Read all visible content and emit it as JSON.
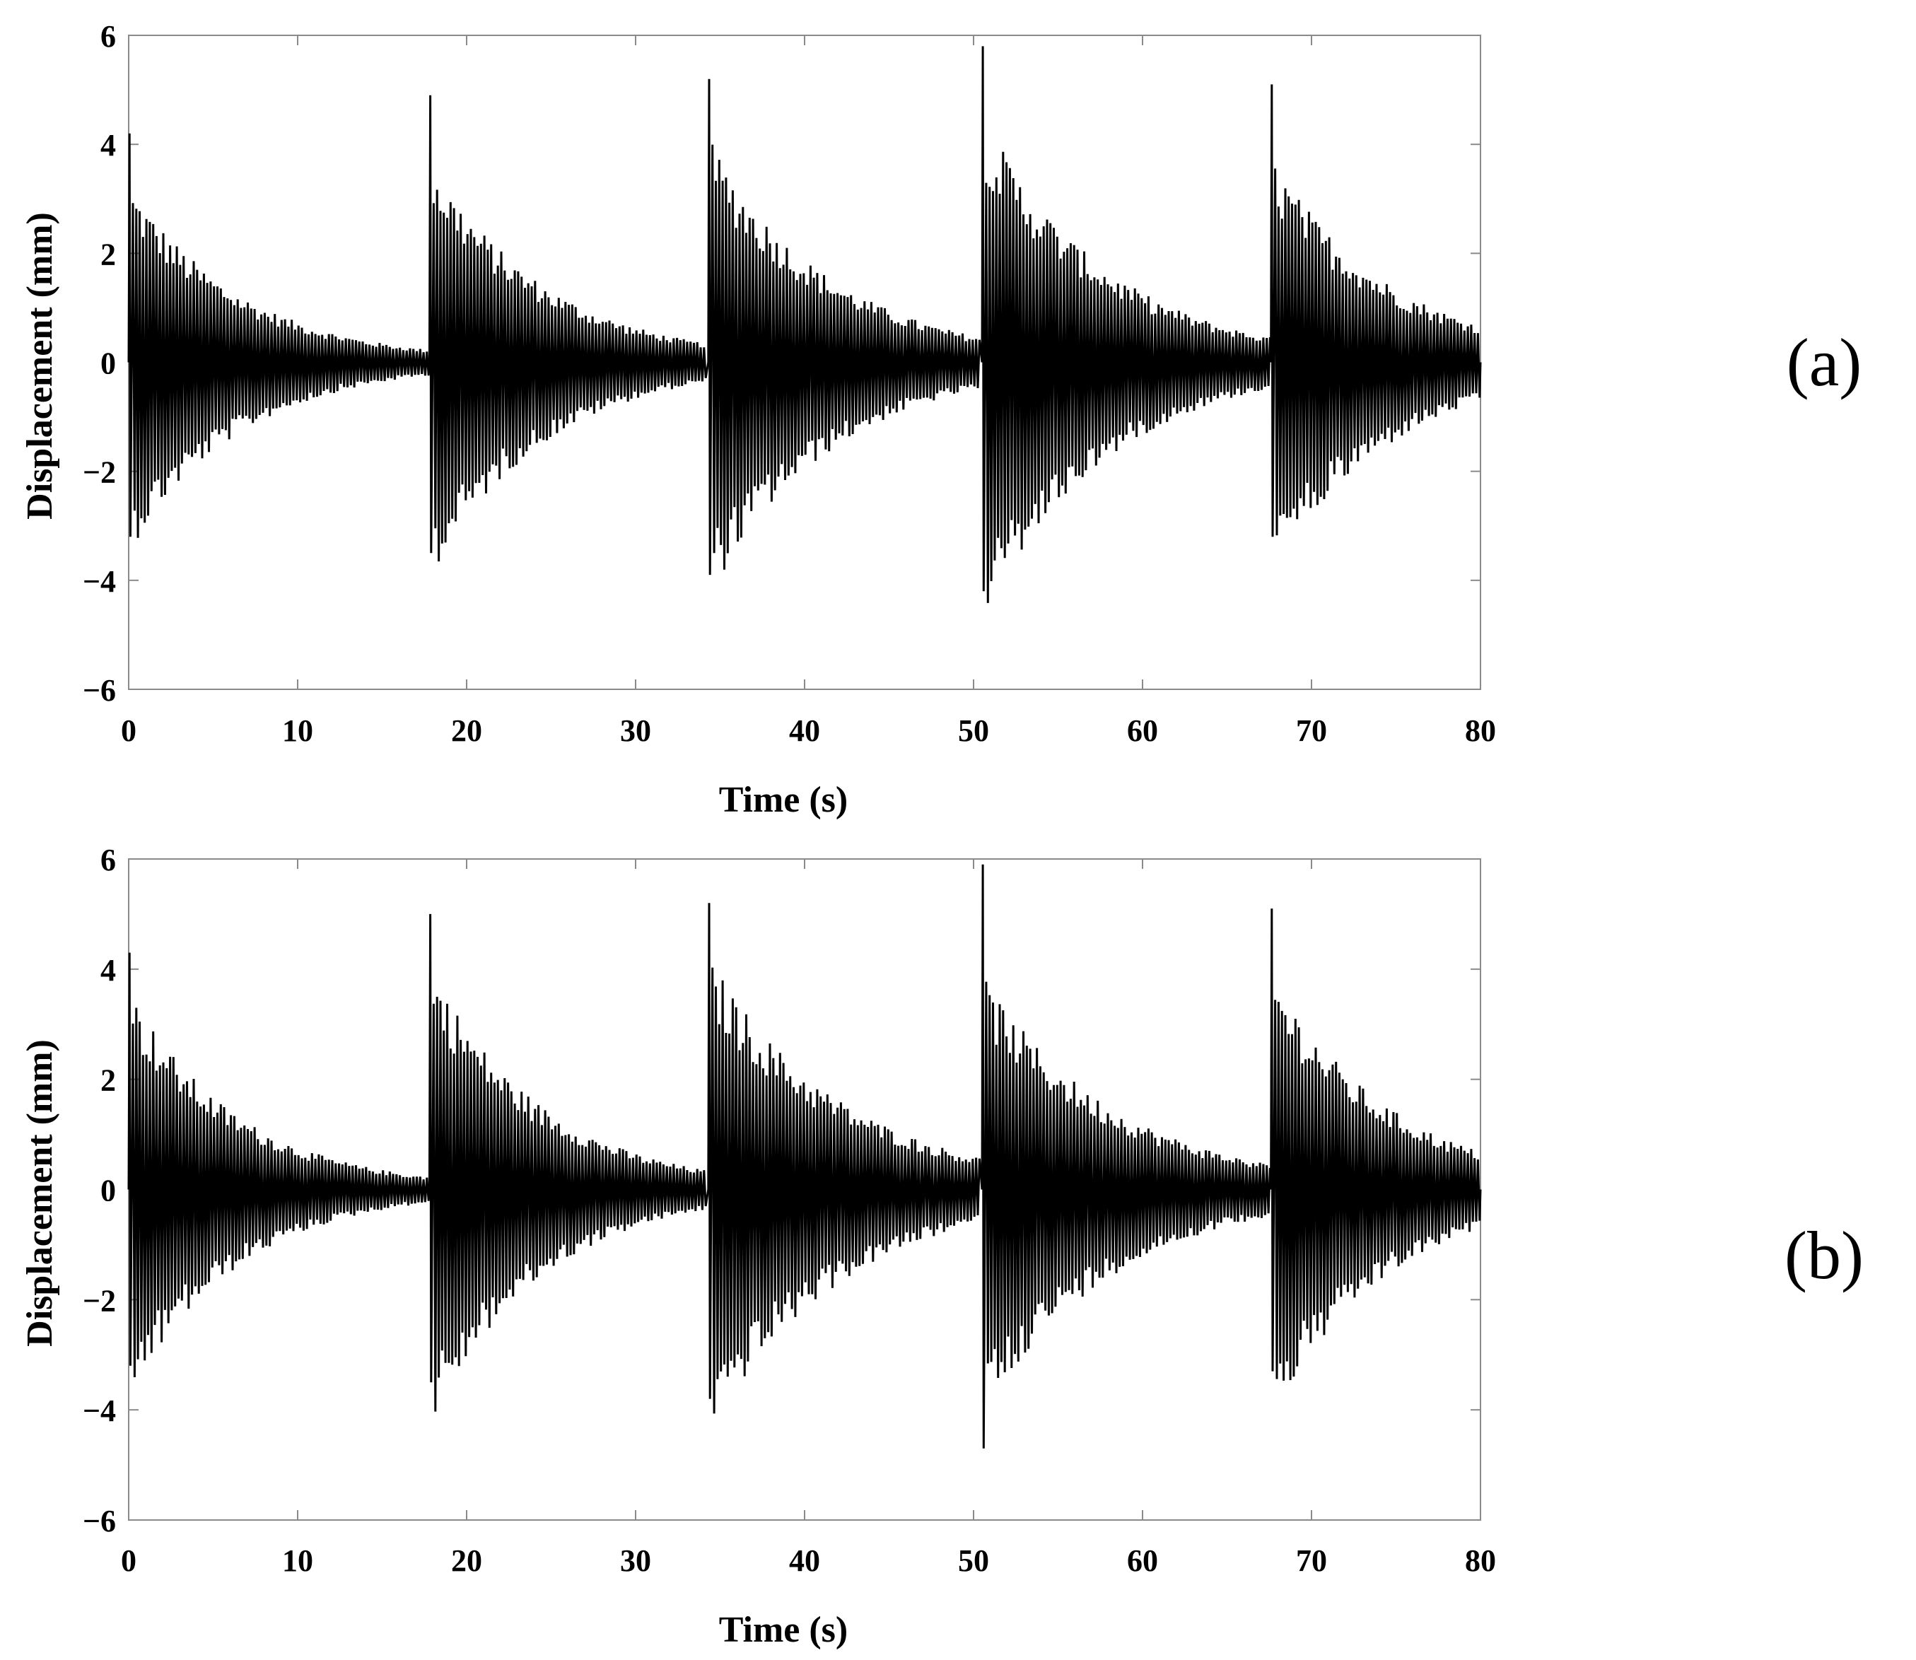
{
  "chart_data": [
    {
      "type": "line",
      "panel_label": "(a)",
      "xlabel": "Time (s)",
      "ylabel": "Displacement (mm)",
      "xlim": [
        0,
        80
      ],
      "ylim": [
        -6,
        6
      ],
      "xticks": [
        0,
        10,
        20,
        30,
        40,
        50,
        60,
        70,
        80
      ],
      "yticks": [
        6,
        4,
        2,
        0,
        -2,
        -4,
        -6
      ],
      "ytick_labels": [
        "6",
        "4",
        "2",
        "0",
        "−2",
        "−4",
        "−6"
      ],
      "grid": false,
      "line_color": "#000000",
      "segments": [
        {
          "t_start": 0.0,
          "t_end": 17.8,
          "peak_max": 4.2,
          "peak_min": -3.2,
          "envelope_start": 2.9,
          "envelope_end": 0.2
        },
        {
          "t_start": 17.8,
          "t_end": 34.3,
          "peak_max": 4.9,
          "peak_min": -3.5,
          "envelope_start": 3.3,
          "envelope_end": 0.3
        },
        {
          "t_start": 34.3,
          "t_end": 50.5,
          "peak_max": 5.2,
          "peak_min": -3.9,
          "envelope_start": 3.6,
          "envelope_end": 0.4
        },
        {
          "t_start": 50.5,
          "t_end": 67.6,
          "peak_max": 5.8,
          "peak_min": -4.2,
          "envelope_start": 4.0,
          "envelope_end": 0.4
        },
        {
          "t_start": 67.6,
          "t_end": 80.0,
          "peak_max": 5.1,
          "peak_min": -3.2,
          "envelope_start": 3.3,
          "envelope_end": 0.6
        }
      ]
    },
    {
      "type": "line",
      "panel_label": "(b)",
      "xlabel": "Time (s)",
      "ylabel": "Displacement (mm)",
      "xlim": [
        0,
        80
      ],
      "ylim": [
        -6,
        6
      ],
      "xticks": [
        0,
        10,
        20,
        30,
        40,
        50,
        60,
        70,
        80
      ],
      "yticks": [
        6,
        4,
        2,
        0,
        -2,
        -4,
        -6
      ],
      "ytick_labels": [
        "6",
        "4",
        "2",
        "0",
        "−2",
        "−4",
        "−6"
      ],
      "grid": false,
      "line_color": "#000000",
      "segments": [
        {
          "t_start": 0.0,
          "t_end": 17.8,
          "peak_max": 4.3,
          "peak_min": -3.2,
          "envelope_start": 3.2,
          "envelope_end": 0.2
        },
        {
          "t_start": 17.8,
          "t_end": 34.3,
          "peak_max": 5.0,
          "peak_min": -3.5,
          "envelope_start": 3.6,
          "envelope_end": 0.3
        },
        {
          "t_start": 34.3,
          "t_end": 50.5,
          "peak_max": 5.2,
          "peak_min": -3.8,
          "envelope_start": 3.7,
          "envelope_end": 0.5
        },
        {
          "t_start": 50.5,
          "t_end": 67.6,
          "peak_max": 5.9,
          "peak_min": -4.7,
          "envelope_start": 3.4,
          "envelope_end": 0.4
        },
        {
          "t_start": 67.6,
          "t_end": 80.0,
          "peak_max": 5.1,
          "peak_min": -3.3,
          "envelope_start": 3.5,
          "envelope_end": 0.6
        }
      ]
    }
  ]
}
